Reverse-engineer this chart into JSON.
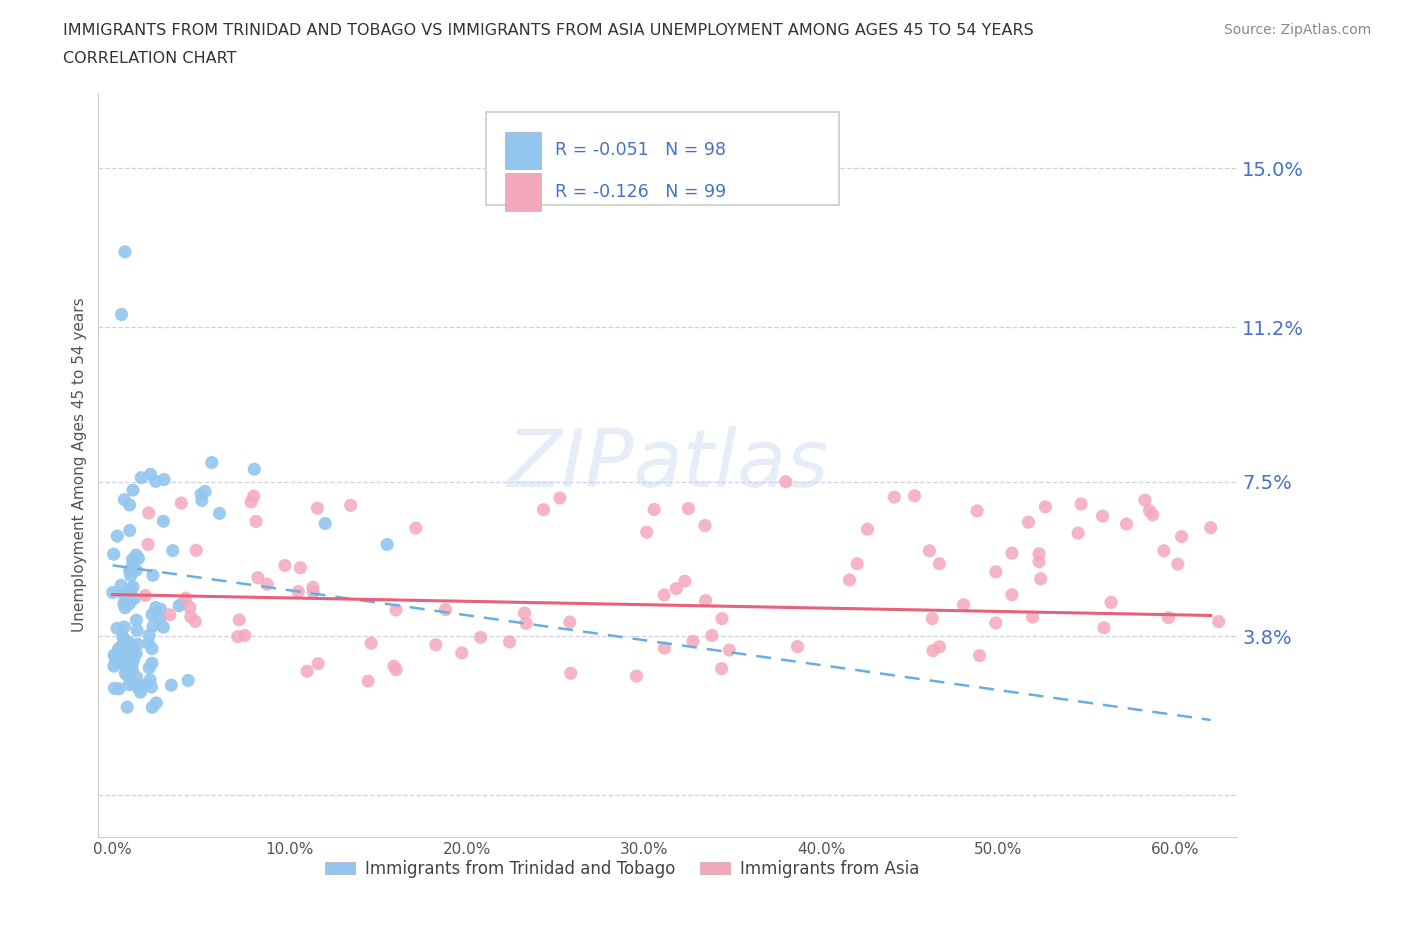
{
  "title_line1": "IMMIGRANTS FROM TRINIDAD AND TOBAGO VS IMMIGRANTS FROM ASIA UNEMPLOYMENT AMONG AGES 45 TO 54 YEARS",
  "title_line2": "CORRELATION CHART",
  "source": "Source: ZipAtlas.com",
  "ylabel": "Unemployment Among Ages 45 to 54 years",
  "legend1_label": "Immigrants from Trinidad and Tobago",
  "legend2_label": "Immigrants from Asia",
  "R1": -0.051,
  "N1": 98,
  "R2": -0.126,
  "N2": 99,
  "color1": "#93C6EE",
  "color2": "#F4A8BC",
  "line1_color": "#6AAEDE",
  "line2_color": "#E8607A",
  "ytick_vals": [
    0.0,
    0.038,
    0.075,
    0.112,
    0.15
  ],
  "ytick_labels": [
    "",
    "3.8%",
    "7.5%",
    "11.2%",
    "15.0%"
  ],
  "xtick_vals": [
    0.0,
    0.1,
    0.2,
    0.3,
    0.4,
    0.5,
    0.6
  ],
  "xtick_labels": [
    "0.0%",
    "10.0%",
    "20.0%",
    "30.0%",
    "40.0%",
    "50.0%",
    "60.0%"
  ],
  "xlim": [
    -0.008,
    0.635
  ],
  "ylim": [
    -0.01,
    0.168
  ],
  "tick_color": "#4472C4",
  "background_color": "#ffffff",
  "grid_color": "#BBBBDD",
  "watermark": "ZIPatlas",
  "title_color": "#333333",
  "source_color": "#888888",
  "ylabel_color": "#555555",
  "legend_text_color": "#4472C4",
  "line1_slope_x0": 0.0,
  "line1_y_x0": 0.055,
  "line1_slope_x1": 0.62,
  "line1_y_x1": 0.018,
  "line2_slope_x0": 0.0,
  "line2_y_x0": 0.048,
  "line2_slope_x1": 0.62,
  "line2_y_x1": 0.043
}
